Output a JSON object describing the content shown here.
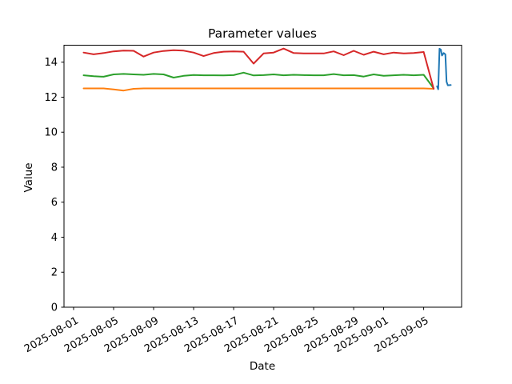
{
  "chart_data": {
    "type": "line",
    "title": "Parameter values",
    "xlabel": "Date",
    "ylabel": "Value",
    "grid": false,
    "legend": "none",
    "background": "#ffffff",
    "axis_color": "#000000",
    "y_ticks": [
      0,
      2,
      4,
      6,
      8,
      10,
      12,
      14
    ],
    "x_ticks": [
      "2025-08-01",
      "2025-08-05",
      "2025-08-09",
      "2025-08-13",
      "2025-08-17",
      "2025-08-21",
      "2025-08-25",
      "2025-08-29",
      "2025-09-01",
      "2025-09-05"
    ],
    "xlim": [
      "2025-07-31 01:00",
      "2025-09-08 19:00"
    ],
    "ylim": [
      0,
      14.97
    ],
    "x": [
      "2025-08-02",
      "2025-08-03",
      "2025-08-04",
      "2025-08-05",
      "2025-08-06",
      "2025-08-07",
      "2025-08-08",
      "2025-08-09",
      "2025-08-10",
      "2025-08-11",
      "2025-08-12",
      "2025-08-13",
      "2025-08-14",
      "2025-08-15",
      "2025-08-16",
      "2025-08-17",
      "2025-08-18",
      "2025-08-19",
      "2025-08-20",
      "2025-08-21",
      "2025-08-22",
      "2025-08-23",
      "2025-08-24",
      "2025-08-25",
      "2025-08-26",
      "2025-08-27",
      "2025-08-28",
      "2025-08-29",
      "2025-08-30",
      "2025-08-31",
      "2025-09-01",
      "2025-09-02",
      "2025-09-03",
      "2025-09-04",
      "2025-09-05",
      "2025-09-06"
    ],
    "series": [
      {
        "name": "blue",
        "color": "#1f77b4",
        "x": [
          "2025-09-06 08:00",
          "2025-09-06 11:00",
          "2025-09-06 14:00",
          "2025-09-06 17:00",
          "2025-09-06 20:00",
          "2025-09-07 00:00",
          "2025-09-07 04:00",
          "2025-09-07 07:00",
          "2025-09-07 10:00",
          "2025-09-07 17:00"
        ],
        "values": [
          12.62,
          12.45,
          14.77,
          14.72,
          14.38,
          14.52,
          14.45,
          12.88,
          12.68,
          12.7
        ]
      },
      {
        "name": "orange",
        "color": "#ff7f0e",
        "values": [
          12.5,
          12.5,
          12.5,
          12.44,
          12.38,
          12.48,
          12.5,
          12.5,
          12.5,
          12.5,
          12.5,
          12.5,
          12.5,
          12.5,
          12.5,
          12.5,
          12.5,
          12.5,
          12.5,
          12.5,
          12.5,
          12.5,
          12.5,
          12.5,
          12.5,
          12.5,
          12.5,
          12.5,
          12.5,
          12.5,
          12.5,
          12.5,
          12.5,
          12.5,
          12.5,
          12.48
        ]
      },
      {
        "name": "green",
        "color": "#2ca02c",
        "values": [
          13.25,
          13.2,
          13.17,
          13.3,
          13.33,
          13.3,
          13.28,
          13.33,
          13.3,
          13.12,
          13.22,
          13.27,
          13.25,
          13.25,
          13.24,
          13.26,
          13.4,
          13.24,
          13.26,
          13.3,
          13.25,
          13.28,
          13.26,
          13.25,
          13.25,
          13.32,
          13.25,
          13.26,
          13.18,
          13.3,
          13.22,
          13.25,
          13.28,
          13.25,
          13.28,
          12.5
        ]
      },
      {
        "name": "red",
        "color": "#d62728",
        "values": [
          14.55,
          14.45,
          14.52,
          14.62,
          14.66,
          14.65,
          14.32,
          14.55,
          14.64,
          14.68,
          14.66,
          14.55,
          14.35,
          14.52,
          14.6,
          14.62,
          14.6,
          13.92,
          14.5,
          14.55,
          14.78,
          14.52,
          14.5,
          14.5,
          14.5,
          14.62,
          14.4,
          14.65,
          14.42,
          14.6,
          14.45,
          14.55,
          14.5,
          14.52,
          14.58,
          12.48
        ]
      }
    ]
  }
}
